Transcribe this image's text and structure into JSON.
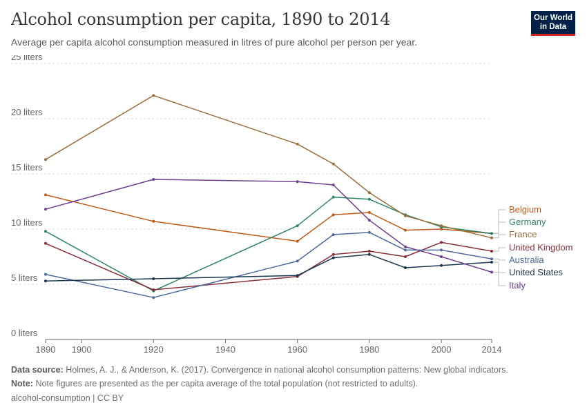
{
  "header": {
    "title": "Alcohol consumption per capita, 1890 to 2014",
    "subtitle": "Average per capita alcohol consumption measured in litres of pure alcohol per person per year.",
    "logo_line1": "Our World",
    "logo_line2": "in Data"
  },
  "footer": {
    "source_label": "Data source:",
    "source_text": "Holmes, A. J., & Anderson, K. (2017). Convergence in national alcohol consumption patterns: New global indicators.",
    "note_label": "Note:",
    "note_text": "Note figures are presented as the per capita average of the total population (not restricted to adults).",
    "credit": "alcohol-consumption | CC BY"
  },
  "colors": {
    "grid": "#dddddd",
    "axis": "#666666",
    "tick_text": "#666666"
  },
  "chart_data": {
    "type": "line",
    "x_ticks": [
      1890,
      1900,
      1920,
      1940,
      1960,
      1980,
      2000,
      2014
    ],
    "y_ticks": [
      0,
      5,
      10,
      15,
      20,
      25
    ],
    "y_tick_labels": [
      "0 liters",
      "5 liters",
      "10 liters",
      "15 liters",
      "20 liters",
      "25 liters"
    ],
    "xlim": [
      1890,
      2014
    ],
    "ylim": [
      0,
      25
    ],
    "grid": true,
    "legend_position": "right",
    "series": [
      {
        "name": "Belgium",
        "color": "#c05917",
        "x": [
          1890,
          1920,
          1960,
          1970,
          1980,
          1990,
          2000,
          2014
        ],
        "values": [
          13.1,
          10.7,
          8.9,
          11.3,
          11.5,
          9.9,
          10.0,
          9.6
        ]
      },
      {
        "name": "Germany",
        "color": "#2e8566",
        "x": [
          1890,
          1920,
          1960,
          1970,
          1980,
          1990,
          2000,
          2014
        ],
        "values": [
          9.8,
          4.4,
          10.3,
          12.9,
          12.7,
          11.3,
          10.2,
          9.6
        ]
      },
      {
        "name": "France",
        "color": "#996d39",
        "x": [
          1890,
          1920,
          1960,
          1970,
          1980,
          1990,
          2000,
          2014
        ],
        "values": [
          16.3,
          22.1,
          17.7,
          15.9,
          13.3,
          11.2,
          10.3,
          9.2
        ]
      },
      {
        "name": "United Kingdom",
        "color": "#883039",
        "x": [
          1890,
          1920,
          1960,
          1970,
          1980,
          1990,
          2000,
          2014
        ],
        "values": [
          8.7,
          4.5,
          5.7,
          7.7,
          8.0,
          7.5,
          8.8,
          8.0
        ]
      },
      {
        "name": "Australia",
        "color": "#4c6a9c",
        "x": [
          1890,
          1920,
          1960,
          1970,
          1980,
          1990,
          2000,
          2014
        ],
        "values": [
          5.9,
          3.8,
          7.1,
          9.5,
          9.7,
          8.1,
          8.1,
          7.3
        ]
      },
      {
        "name": "United States",
        "color": "#18374e",
        "x": [
          1890,
          1920,
          1960,
          1970,
          1980,
          1990,
          2000,
          2014
        ],
        "values": [
          5.3,
          5.5,
          5.8,
          7.4,
          7.7,
          6.5,
          6.7,
          7.0
        ]
      },
      {
        "name": "Italy",
        "color": "#6d3e91",
        "x": [
          1890,
          1920,
          1960,
          1970,
          1980,
          1990,
          2000,
          2014
        ],
        "values": [
          11.8,
          14.5,
          14.3,
          14.0,
          10.8,
          8.4,
          7.5,
          6.1
        ]
      }
    ]
  }
}
